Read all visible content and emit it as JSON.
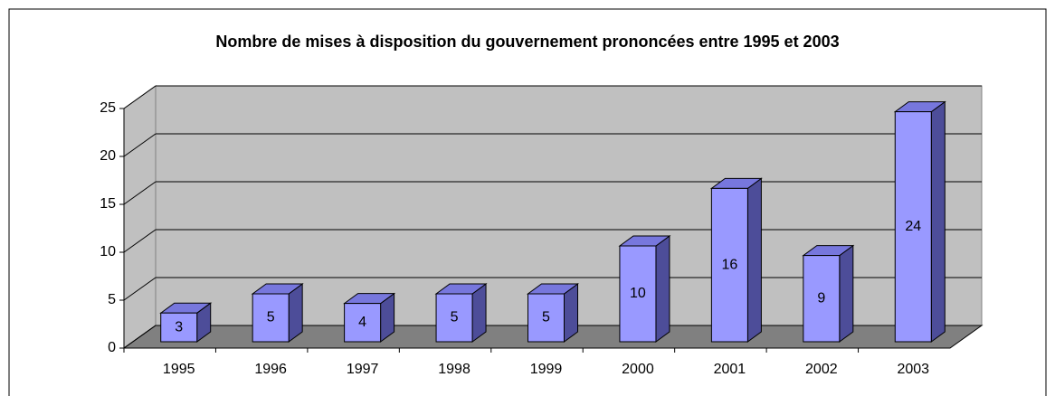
{
  "chart_data": {
    "type": "bar3d",
    "title": "Nombre de mises à disposition du gouvernement prononcées entre 1995 et 2003",
    "categories": [
      "1995",
      "1996",
      "1997",
      "1998",
      "1999",
      "2000",
      "2001",
      "2002",
      "2003"
    ],
    "values": [
      3,
      5,
      4,
      5,
      5,
      10,
      16,
      9,
      24
    ],
    "color": "#9999ff",
    "ylim": [
      0,
      25
    ],
    "yticks": [
      0,
      5,
      10,
      15,
      20,
      25
    ],
    "grid": true
  }
}
